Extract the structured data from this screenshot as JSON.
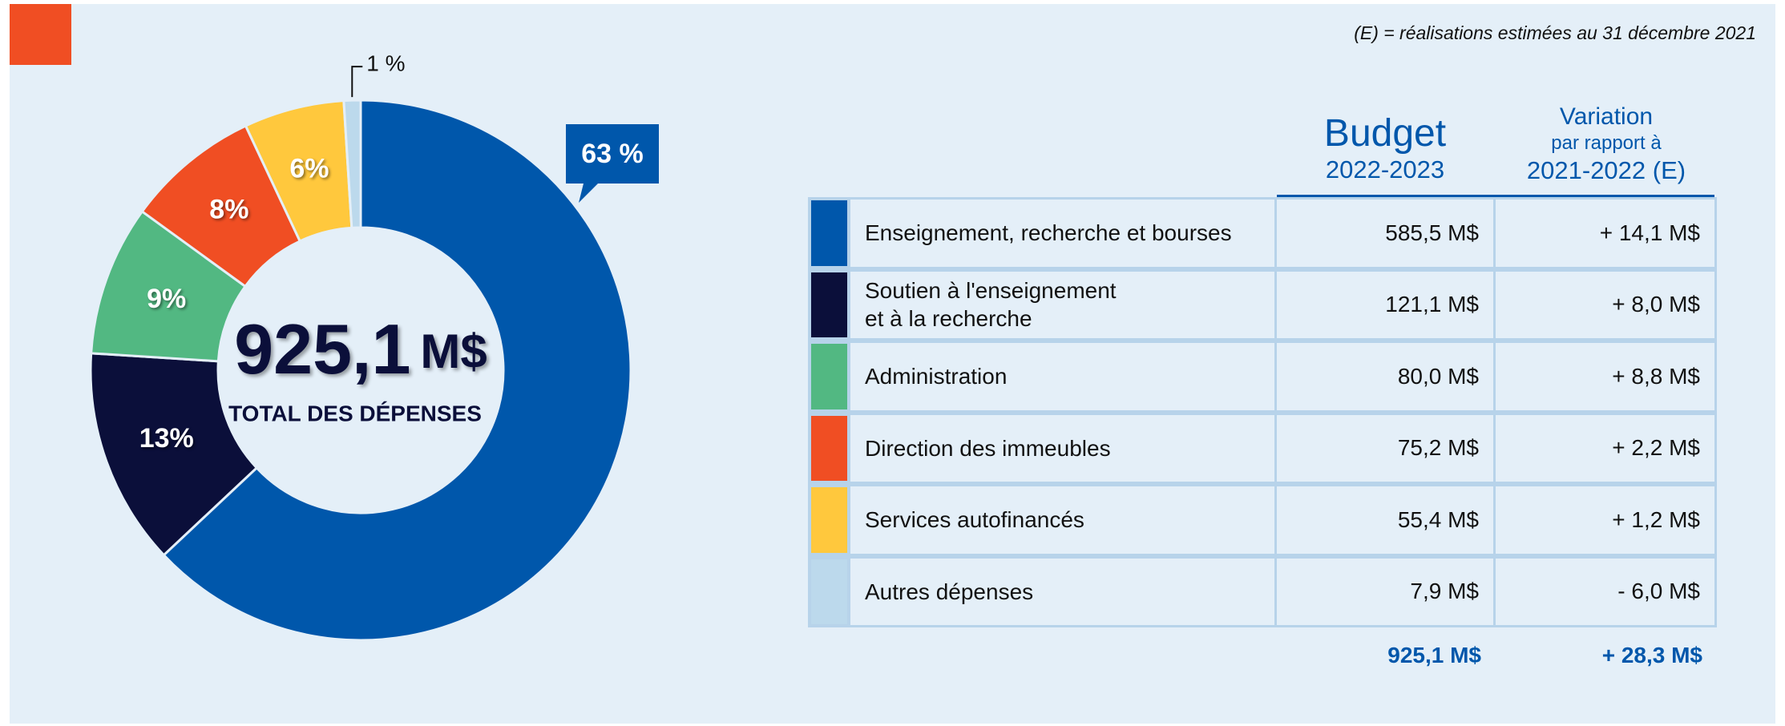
{
  "note": "(E) = réalisations estimées au 31 décembre 2021",
  "chart_data": {
    "type": "donut",
    "categories": [
      "Enseignement, recherche et bourses",
      "Soutien à l'enseignement\net à la recherche",
      "Administration",
      "Direction des immeubles",
      "Services autofinancés",
      "Autres dépenses"
    ],
    "values": [
      63,
      13,
      9,
      8,
      6,
      1
    ],
    "value_labels": [
      "63 %",
      "13%",
      "9%",
      "8%",
      "6%",
      "1 %"
    ],
    "colors": [
      "#0057ab",
      "#0b0f3a",
      "#52b882",
      "#f04e23",
      "#ffc83d",
      "#bcd9ec"
    ],
    "center_value": "925,1",
    "center_unit": "M$",
    "center_label": "TOTAL DES DÉPENSES"
  },
  "table": {
    "budget_header": [
      "Budget",
      "2022-2023"
    ],
    "variation_header": [
      "Variation",
      "par rapport à",
      "2021-2022 (E)"
    ],
    "rows": [
      [
        "585,5 M$",
        "+ 14,1 M$"
      ],
      [
        "121,1 M$",
        "+ 8,0 M$"
      ],
      [
        "80,0 M$",
        "+ 8,8 M$"
      ],
      [
        "75,2 M$",
        "+ 2,2 M$"
      ],
      [
        "55,4 M$",
        "+ 1,2 M$"
      ],
      [
        "7,9 M$",
        "- 6,0 M$"
      ]
    ],
    "total": [
      "925,1 M$",
      "+ 28,3 M$"
    ]
  }
}
